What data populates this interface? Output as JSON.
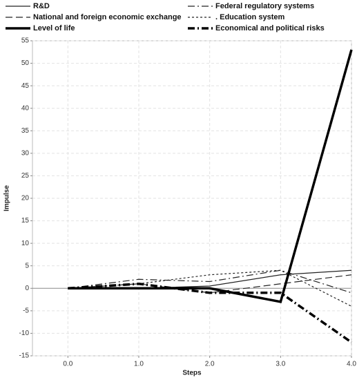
{
  "chart_data": {
    "type": "line",
    "x_label": "Steps",
    "y_label": "Impulse",
    "x": [
      0,
      1,
      2,
      3,
      4
    ],
    "xlim": [
      -0.5,
      4
    ],
    "xticks": [
      {
        "value": 0,
        "label": "0.0"
      },
      {
        "value": 1,
        "label": "1.0"
      },
      {
        "value": 2,
        "label": "2.0"
      },
      {
        "value": 3,
        "label": "3.0"
      },
      {
        "value": 4,
        "label": "4.0"
      }
    ],
    "ylim": [
      -15,
      55
    ],
    "yticks": [
      -15,
      -10,
      -5,
      0,
      5,
      10,
      15,
      20,
      25,
      30,
      35,
      40,
      45,
      50,
      55
    ],
    "grid": true,
    "series": [
      {
        "name": "R&D",
        "color": "#222222",
        "style": "solid",
        "width": 1.2,
        "values": [
          0,
          0,
          0.5,
          3,
          4
        ]
      },
      {
        "name": "Federal regulatory systems",
        "color": "#222222",
        "style": "dashdot",
        "width": 1.2,
        "values": [
          0,
          2,
          1.5,
          4,
          -1
        ]
      },
      {
        "name": "National and foreign economic exchange",
        "color": "#222222",
        "style": "dash",
        "width": 1.2,
        "values": [
          0,
          1,
          -1,
          1,
          3
        ]
      },
      {
        "name": ". Education system",
        "color": "#222222",
        "style": "dot",
        "width": 1.2,
        "values": [
          0,
          1,
          3,
          4,
          -4
        ]
      },
      {
        "name": "Level of life",
        "color": "#000000",
        "style": "solid",
        "width": 3.5,
        "values": [
          0,
          0,
          0,
          -3,
          53
        ]
      },
      {
        "name": "Economical and political risks",
        "color": "#000000",
        "style": "dashdot",
        "width": 3.5,
        "values": [
          0,
          1,
          -1,
          -1,
          -12
        ]
      }
    ]
  }
}
